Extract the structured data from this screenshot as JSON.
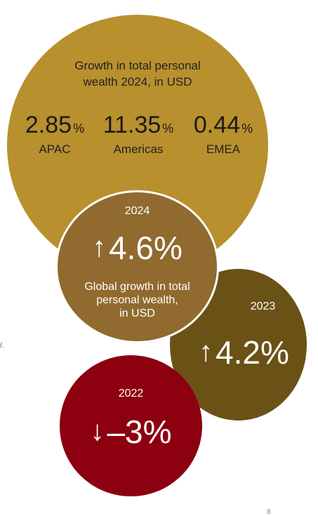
{
  "regional": {
    "heading_line1": "Growth in total personal",
    "heading_line2": "wealth 2024, in USD",
    "stats": [
      {
        "value": "2.85",
        "unit": "%",
        "region": "APAC"
      },
      {
        "value": "11.35",
        "unit": "%",
        "region": "Americas"
      },
      {
        "value": "0.44",
        "unit": "%",
        "region": "EMEA"
      }
    ]
  },
  "global_2024": {
    "year": "2024",
    "arrow": "↑",
    "growth": "4.6%",
    "desc_line1": "Global growth in total",
    "desc_line2": "personal wealth,",
    "desc_line3": "in USD"
  },
  "y2023": {
    "year": "2023",
    "arrow": "↑",
    "growth": "4.2%"
  },
  "y2022": {
    "year": "2022",
    "arrow": "↓",
    "growth": "–3%"
  },
  "stray_mark": "/.",
  "page_number": "8",
  "colors": {
    "regional_circle": "#b8902e",
    "global_circle": "#906a2e",
    "circle_2023": "#6a5216",
    "circle_2022": "#8c0010"
  }
}
